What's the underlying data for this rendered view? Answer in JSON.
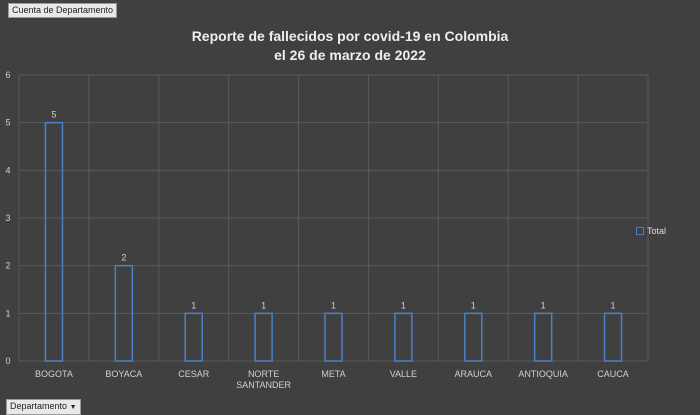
{
  "field_buttons": {
    "value_field": "Cuenta de Departamento",
    "axis_field": "Departamento",
    "dropdown_icon": "triangle-down-icon"
  },
  "chart_data": {
    "type": "bar",
    "title": "Reporte de fallecidos por covid-19 en Colombia",
    "subtitle": "el 26 de marzo de 2022",
    "categories": [
      "BOGOTA",
      "BOYACA",
      "CESAR",
      "NORTE SANTANDER",
      "META",
      "VALLE",
      "ARAUCA",
      "ANTIOQUIA",
      "CAUCA"
    ],
    "series": [
      {
        "name": "Total",
        "values": [
          5,
          2,
          1,
          1,
          1,
          1,
          1,
          1,
          1
        ]
      }
    ],
    "ylim": [
      0,
      6
    ],
    "yticks": [
      0,
      1,
      2,
      3,
      4,
      5,
      6
    ],
    "grid": true,
    "data_labels": true,
    "legend": "right",
    "colors": {
      "background": "#404040",
      "bar_outline": "#4a80c8",
      "grid": "#595959",
      "text": "#d0d0d0"
    }
  }
}
